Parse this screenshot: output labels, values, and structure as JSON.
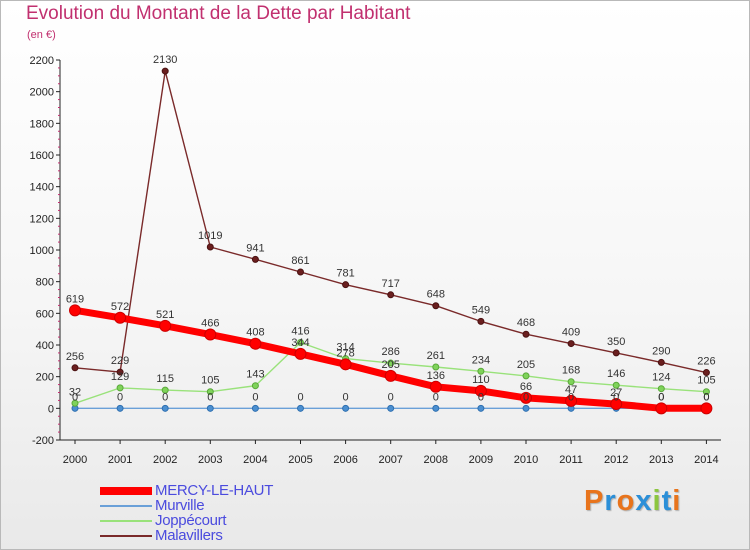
{
  "chart_data": {
    "type": "line",
    "title": "Evolution du Montant de la Dette par Habitant",
    "subtitle": "(en €)",
    "x": [
      "2000",
      "2001",
      "2002",
      "2003",
      "2004",
      "2005",
      "2006",
      "2007",
      "2008",
      "2009",
      "2010",
      "2011",
      "2012",
      "2013",
      "2014"
    ],
    "ylim": [
      -200,
      2200
    ],
    "yticks": [
      -200,
      0,
      200,
      400,
      600,
      800,
      1000,
      1200,
      1400,
      1600,
      1800,
      2000,
      2200
    ],
    "grid": false,
    "legend_position": "bottom-left",
    "series": [
      {
        "name": "MERCY-LE-HAUT",
        "color": "#ff0000",
        "values": [
          619,
          572,
          521,
          466,
          408,
          344,
          278,
          205,
          136,
          110,
          66,
          47,
          27,
          0,
          0
        ]
      },
      {
        "name": "Murville",
        "color": "#6aa0d8",
        "values": [
          0,
          0,
          0,
          0,
          0,
          0,
          0,
          0,
          0,
          0,
          0,
          0,
          0,
          0,
          0
        ]
      },
      {
        "name": "Joppécourt",
        "color": "#99e27a",
        "values": [
          32,
          129,
          115,
          105,
          143,
          416,
          314,
          286,
          261,
          234,
          205,
          168,
          146,
          124,
          105
        ]
      },
      {
        "name": "Malavillers",
        "color": "#7a2a2a",
        "values": [
          256,
          229,
          2130,
          1019,
          941,
          861,
          781,
          717,
          648,
          549,
          468,
          409,
          350,
          290,
          226
        ]
      }
    ]
  },
  "legend": [
    {
      "label": "MERCY-LE-HAUT"
    },
    {
      "label": "Murville"
    },
    {
      "label": "Joppécourt"
    },
    {
      "label": "Malavillers"
    }
  ],
  "brand": {
    "letters": [
      "P",
      "r",
      "o",
      "x",
      "i",
      "t",
      "i"
    ],
    "colors": [
      "#e8741c",
      "#2b8fd8",
      "#e8741c",
      "#2b8fd8",
      "#8cc63f",
      "#2b8fd8",
      "#e8741c"
    ]
  }
}
